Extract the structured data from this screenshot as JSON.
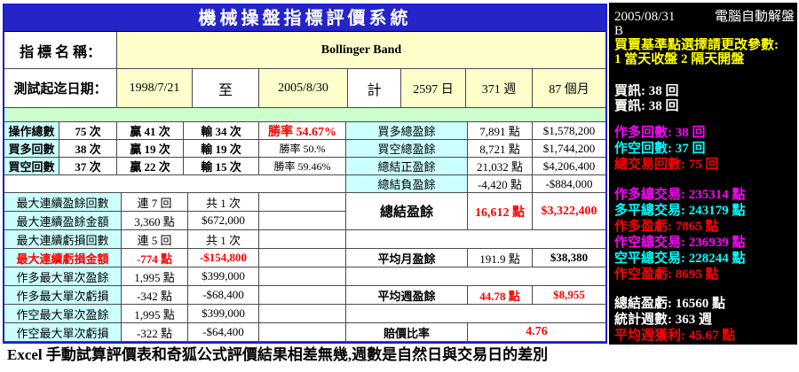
{
  "title": "機械操盤指標評價系統",
  "indicator": {
    "label": "指 標 名 稱：",
    "value": "Bollinger Band"
  },
  "period": {
    "label": "測試起迄日期：",
    "start": "1998/7/21",
    "to": "至",
    "end": "2005/8/30",
    "total_label": "計",
    "days": "2597 日",
    "weeks": "371 週",
    "months": "87 個月"
  },
  "trade_counts": [
    {
      "label": "操作總數",
      "count": "75 次",
      "wins": "贏 41 次",
      "losses": "輸 34 次",
      "win_rate": "勝率 54.67%"
    },
    {
      "label": "買多回數",
      "count": "38 次",
      "wins": "贏 19 次",
      "losses": "輸 19 次",
      "win_rate": "勝率 50.%"
    },
    {
      "label": "買空回數",
      "count": "37 次",
      "wins": "贏 22 次",
      "losses": "輸 15 次",
      "win_rate": "勝率 59.46%"
    }
  ],
  "streaks": [
    {
      "label": "最大連續盈餘回數",
      "value": "連 7 回",
      "secondary": "共 1 次"
    },
    {
      "label": "最大連續盈餘金額",
      "value": "3,360 點",
      "secondary": "$672,000"
    },
    {
      "label": "最大連續虧損回數",
      "value": "連 5 回",
      "secondary": "共 1 次"
    },
    {
      "label": "最大連續虧損金額",
      "value": "-774 點",
      "secondary": "-$154,800"
    },
    {
      "label": "作多最大單次盈餘",
      "value": "1,995 點",
      "secondary": "$399,000"
    },
    {
      "label": "作多最大單次虧損",
      "value": "-342 點",
      "secondary": "-$68,400"
    },
    {
      "label": "作空最大單次盈餘",
      "value": "1,995 點",
      "secondary": "$399,000"
    },
    {
      "label": "作空最大單次虧損",
      "value": "-322 點",
      "secondary": "-$64,400"
    }
  ],
  "profit_totals": [
    {
      "label": "買多總盈餘",
      "points": "7,891 點",
      "amount": "$1,578,200"
    },
    {
      "label": "買空總盈餘",
      "points": "8,721 點",
      "amount": "$1,744,200"
    },
    {
      "label": "總結正盈餘",
      "points": "21,032 點",
      "amount": "$4,206,400"
    },
    {
      "label": "總結負盈餘",
      "points": "-4,420 點",
      "amount": "-$884,000"
    }
  ],
  "net_profit": {
    "label": "總結盈餘",
    "points": "16,612 點",
    "amount": "$3,322,400"
  },
  "averages": {
    "monthly": {
      "label": "平均月盈餘",
      "points": "191.9 點",
      "amount": "$38,380"
    },
    "weekly": {
      "label": "平均週盈餘",
      "points": "44.78 點",
      "amount": "$8,955"
    },
    "payoff_ratio": {
      "label": "賠價比率",
      "value": "4.76"
    }
  },
  "auto_panel": {
    "date": "2005/08/31",
    "title": "電腦自動解盤",
    "symbol": "B",
    "notice": [
      {
        "text": "買賣基準點選擇請更改參數:",
        "color": "#ffff00"
      },
      {
        "text": "1 當天收盤 2 隔天開盤",
        "color": "#ffff00"
      }
    ],
    "signals": [
      {
        "text": "買訊: 38 回",
        "color": "#ffffff"
      },
      {
        "text": "賣訊: 38 回",
        "color": "#ffffff"
      }
    ],
    "counts": [
      {
        "text": "作多回數: 38 回",
        "color": "#ff00ff"
      },
      {
        "text": "作空回數: 37 回",
        "color": "#00ffff"
      },
      {
        "text": "總交易回數: 75 回",
        "color": "#ff0000"
      }
    ],
    "trades": [
      {
        "text": "作多總交易: 235314 點",
        "color": "#ff00ff"
      },
      {
        "text": "多平總交易: 243179 點",
        "color": "#00ffff"
      },
      {
        "text": "作多盈虧: 7865 點",
        "color": "#ff0000"
      },
      {
        "text": "作空總交易: 236939 點",
        "color": "#ff00ff"
      },
      {
        "text": "空平總交易: 228244 點",
        "color": "#00ffff"
      },
      {
        "text": "作空盈虧: 8695 點",
        "color": "#ff0000"
      }
    ],
    "summary": [
      {
        "text": "總結盈虧: 16560 點",
        "color": "#ffffff"
      },
      {
        "text": "統計週數: 363 週",
        "color": "#ffffff"
      },
      {
        "text": "平均週獲利: 45.67 點",
        "color": "#ff0000"
      }
    ]
  },
  "caption": "Excel 手動試算評價表和奇狐公式評價結果相差無幾,週數是自然日與交易日的差別",
  "colors": {
    "title_bg": "#2424c8",
    "frame": "#1c1cd8",
    "label_bg": "#ccffff",
    "value_bg": "#ffffcc",
    "band_bg": "#ccffcc",
    "highlight": "#ff0000",
    "panel_bg": "#000000"
  }
}
